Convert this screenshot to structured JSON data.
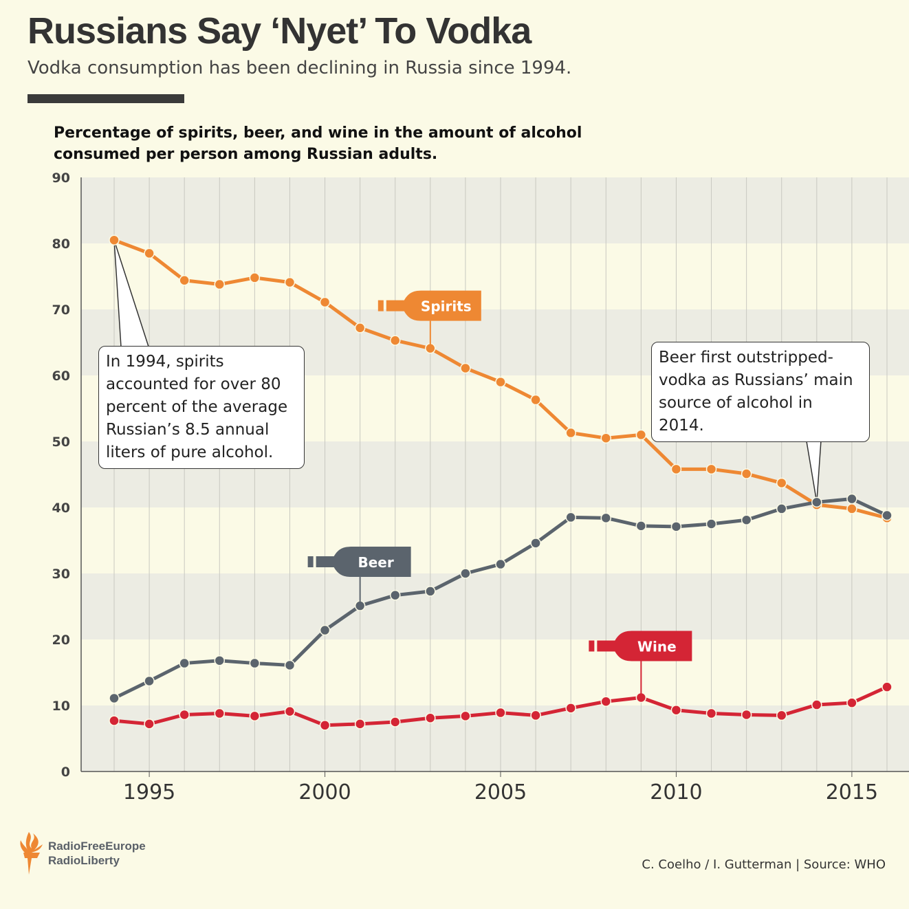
{
  "header": {
    "title": "Russians Say ‘Nyet’ To Vodka",
    "subtitle": "Vodka consumption has been declining in Russia since 1994."
  },
  "chart_data": {
    "type": "line",
    "title": "Percentage of spirits, beer, and wine in the amount of alcohol consumed per person among Russian adults.",
    "xlabel": "",
    "ylabel": "",
    "x": [
      1994,
      1995,
      1996,
      1997,
      1998,
      1999,
      2000,
      2001,
      2002,
      2003,
      2004,
      2005,
      2006,
      2007,
      2008,
      2009,
      2010,
      2011,
      2012,
      2013,
      2014,
      2015,
      2016
    ],
    "xticks": [
      1995,
      2000,
      2005,
      2010,
      2015
    ],
    "yticks": [
      0,
      10,
      20,
      30,
      40,
      50,
      60,
      70,
      80,
      90
    ],
    "ylim": [
      0,
      90
    ],
    "grid": "alternating horizontal bands and vertical year lines",
    "series": [
      {
        "name": "Spirits",
        "color": "#ee8833",
        "values": [
          80.5,
          78.5,
          74.4,
          73.8,
          74.8,
          74.1,
          71.1,
          67.2,
          65.3,
          64.1,
          61.1,
          59.0,
          56.3,
          51.3,
          50.5,
          51.0,
          45.8,
          45.8,
          45.1,
          43.7,
          40.4,
          39.8,
          38.4
        ],
        "label_year": 2003
      },
      {
        "name": "Beer",
        "color": "#5b646d",
        "values": [
          11.1,
          13.7,
          16.4,
          16.8,
          16.4,
          16.1,
          21.4,
          25.1,
          26.7,
          27.3,
          30.0,
          31.4,
          34.6,
          38.5,
          38.4,
          37.2,
          37.1,
          37.5,
          38.1,
          39.8,
          40.8,
          41.3,
          38.8
        ],
        "label_year": 2001
      },
      {
        "name": "Wine",
        "color": "#d42535",
        "values": [
          7.7,
          7.2,
          8.6,
          8.8,
          8.4,
          9.1,
          7.0,
          7.2,
          7.5,
          8.1,
          8.4,
          8.9,
          8.5,
          9.6,
          10.6,
          11.2,
          9.3,
          8.8,
          8.6,
          8.5,
          10.1,
          10.4,
          12.8
        ],
        "label_year": 2009
      }
    ],
    "annotations": [
      {
        "year": 1994,
        "text": "In 1994, spirits accounted for over 80 percent of the average Russian’s 8.5 annual liters of pure alcohol."
      },
      {
        "year": 2014,
        "text": "Beer first outstripped- vodka as Russians’ main source of alcohol in 2014."
      }
    ]
  },
  "footer": {
    "logo_line1": "RadioFreeEurope",
    "logo_line2": "RadioLiberty",
    "credit": "C. Coelho / I. Gutterman | Source: WHO"
  }
}
